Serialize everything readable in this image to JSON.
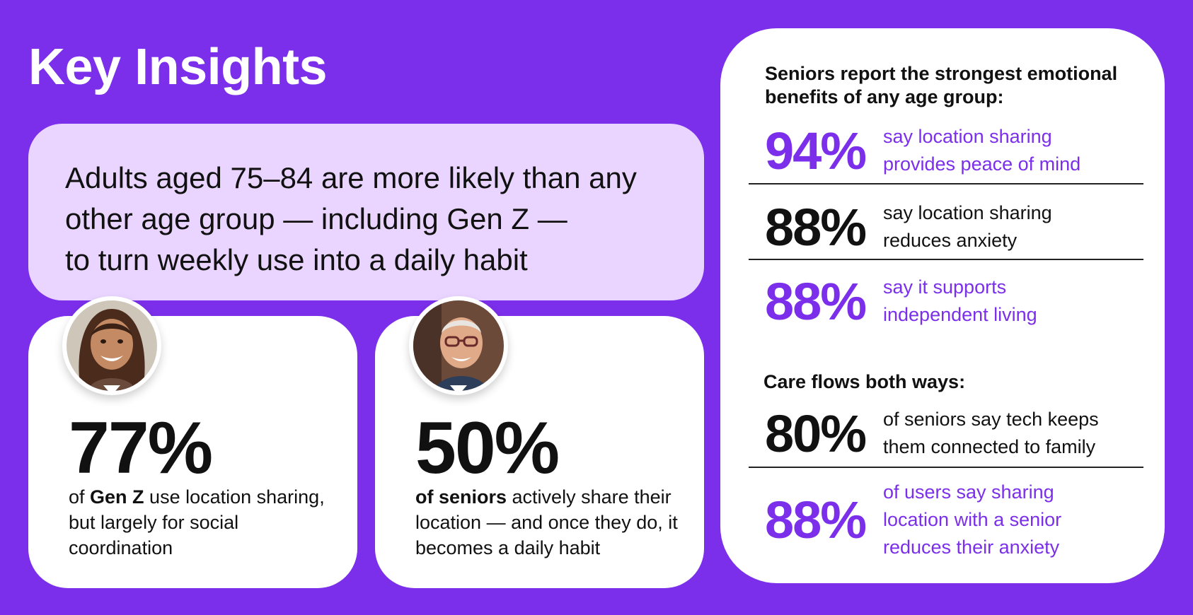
{
  "title": "Key Insights",
  "banner": {
    "lines": [
      "Adults aged 75–84 are more likely than any",
      "other age group — including Gen Z —",
      "to turn weekly use into a daily habit"
    ]
  },
  "cards": [
    {
      "stat": "77%",
      "text_prefix": "of ",
      "text_bold": "Gen Z",
      "text_rest": " use location sharing, but largely for social coordination",
      "avatar": "young-woman-photo"
    },
    {
      "stat": "50%",
      "text_prefix": "",
      "text_bold": "of seniors",
      "text_rest": " actively share their location — and once they do, it becomes a daily habit",
      "avatar": "senior-man-photo"
    }
  ],
  "panel": {
    "heading1": "Seniors report the strongest emotional benefits of any age group:",
    "heading2": "Care flows both ways:",
    "stats1": [
      {
        "pct": "94%",
        "desc": "say location sharing provides peace of mind",
        "color": "#7B2FEA"
      },
      {
        "pct": "88%",
        "desc": "say location sharing reduces anxiety",
        "color": "#111111"
      },
      {
        "pct": "88%",
        "desc": "say it supports independent living",
        "color": "#7B2FEA"
      }
    ],
    "stats2": [
      {
        "pct": "80%",
        "desc": "of seniors say tech keeps them connected to family",
        "color": "#111111"
      },
      {
        "pct": "88%",
        "desc": "of users say sharing location with a senior reduces their anxiety",
        "color": "#7B2FEA"
      }
    ]
  },
  "colors": {
    "background": "#7B2FEA",
    "banner": "#E9D5FF",
    "accent": "#7B2FEA",
    "text": "#111111"
  }
}
